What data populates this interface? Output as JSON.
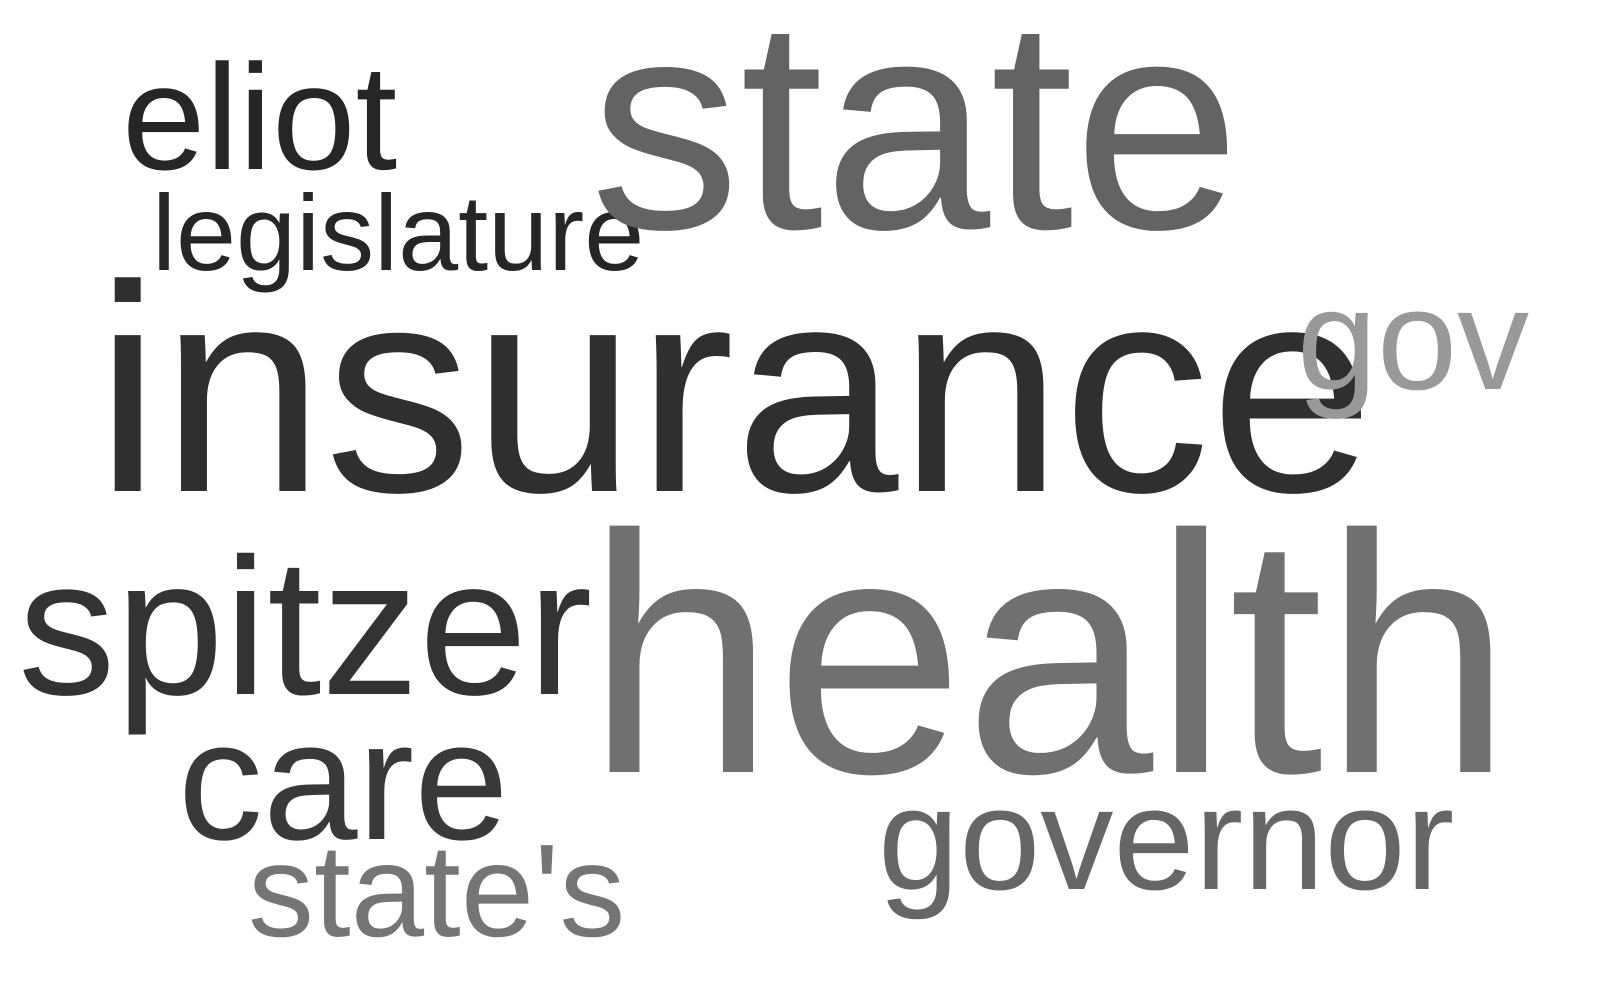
{
  "words": {
    "eliot": {
      "text": "eliot",
      "color": "#262626"
    },
    "legislature": {
      "text": "legislature",
      "color": "#262626"
    },
    "state": {
      "text": "state",
      "color": "#636363"
    },
    "insurance": {
      "text": "insurance",
      "color": "#2f2f2f"
    },
    "gov": {
      "text": "gov",
      "color": "#999999"
    },
    "spitzer": {
      "text": "spitzer",
      "color": "#333333"
    },
    "health": {
      "text": "health",
      "color": "#707070"
    },
    "care": {
      "text": "care",
      "color": "#393939"
    },
    "governor": {
      "text": "governor",
      "color": "#666666"
    },
    "states": {
      "text": "state's",
      "color": "#757575"
    }
  }
}
